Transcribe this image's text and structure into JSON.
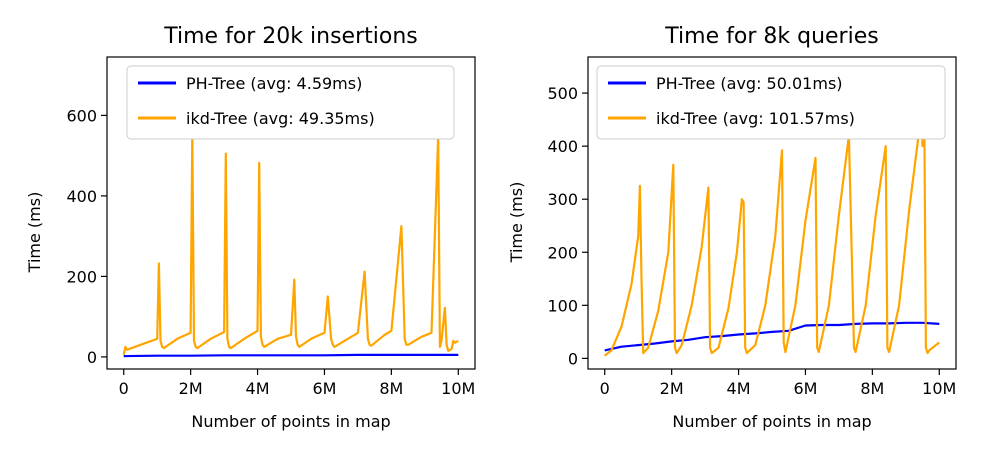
{
  "chart_data": [
    {
      "type": "line",
      "title": "Time for 20k insertions",
      "xlabel": "Number of points in map",
      "ylabel": "Time (ms)",
      "xlim": [
        -0.5,
        10.5
      ],
      "ylim": [
        -30,
        745
      ],
      "xticks": [
        0,
        2,
        4,
        6,
        8,
        10
      ],
      "xtick_labels": [
        "0",
        "2M",
        "4M",
        "6M",
        "8M",
        "10M"
      ],
      "yticks": [
        0,
        200,
        400,
        600
      ],
      "ytick_labels": [
        "0",
        "200",
        "400",
        "600"
      ],
      "legend_position": "top-right",
      "series": [
        {
          "name": "PH-Tree (avg: 4.59ms)",
          "color": "#0000ff",
          "x": [
            0,
            1,
            2,
            3,
            4,
            5,
            6,
            7,
            8,
            9,
            10
          ],
          "y": [
            2,
            3,
            3,
            4,
            4,
            4,
            4,
            5,
            5,
            5,
            5
          ]
        },
        {
          "name": "ikd-Tree (avg: 49.35ms)",
          "color": "#ffa500",
          "x": [
            0,
            0.05,
            0.1,
            0.5,
            1.0,
            1.05,
            1.1,
            1.15,
            1.2,
            1.6,
            2.0,
            2.05,
            2.1,
            2.15,
            2.2,
            2.6,
            3.0,
            3.05,
            3.1,
            3.15,
            3.2,
            3.6,
            4.0,
            4.05,
            4.1,
            4.15,
            4.2,
            4.6,
            5.0,
            5.1,
            5.15,
            5.2,
            5.25,
            5.6,
            6.0,
            6.1,
            6.2,
            6.25,
            6.3,
            6.7,
            7.0,
            7.2,
            7.3,
            7.35,
            7.4,
            7.8,
            8.0,
            8.3,
            8.4,
            8.45,
            8.5,
            8.9,
            9.2,
            9.4,
            9.45,
            9.5,
            9.6,
            9.65,
            9.7,
            9.8,
            9.85,
            9.9,
            10.0
          ],
          "y": [
            5,
            25,
            18,
            30,
            45,
            232,
            40,
            25,
            22,
            45,
            60,
            548,
            40,
            25,
            22,
            45,
            62,
            505,
            45,
            25,
            22,
            45,
            65,
            482,
            50,
            30,
            25,
            45,
            55,
            192,
            50,
            30,
            25,
            45,
            60,
            150,
            45,
            30,
            25,
            45,
            60,
            212,
            45,
            30,
            28,
            55,
            65,
            325,
            45,
            30,
            30,
            50,
            60,
            548,
            25,
            40,
            122,
            30,
            15,
            20,
            40,
            35,
            40
          ]
        }
      ]
    },
    {
      "type": "line",
      "title": "Time for 8k queries",
      "xlabel": "Number of points in map",
      "ylabel": "Time (ms)",
      "xlim": [
        -0.5,
        10.5
      ],
      "ylim": [
        -20,
        568
      ],
      "xticks": [
        0,
        2,
        4,
        6,
        8,
        10
      ],
      "xtick_labels": [
        "0",
        "2M",
        "4M",
        "6M",
        "8M",
        "10M"
      ],
      "yticks": [
        0,
        100,
        200,
        300,
        400,
        500
      ],
      "ytick_labels": [
        "0",
        "100",
        "200",
        "300",
        "400",
        "500"
      ],
      "legend_position": "top-right",
      "series": [
        {
          "name": "PH-Tree (avg: 50.01ms)",
          "color": "#0000ff",
          "x": [
            0,
            0.5,
            1,
            1.5,
            2,
            2.5,
            3,
            3.5,
            4,
            4.5,
            5,
            5.5,
            6,
            6.5,
            7,
            7.5,
            8,
            8.5,
            9,
            9.5,
            10
          ],
          "y": [
            15,
            22,
            25,
            28,
            32,
            35,
            40,
            42,
            45,
            47,
            50,
            52,
            62,
            63,
            63,
            65,
            66,
            66,
            67,
            67,
            65
          ]
        },
        {
          "name": "ikd-Tree (avg: 101.57ms)",
          "color": "#ffa500",
          "x": [
            0,
            0.2,
            0.5,
            0.8,
            1.0,
            1.05,
            1.1,
            1.15,
            1.3,
            1.6,
            1.9,
            2.05,
            2.1,
            2.15,
            2.3,
            2.6,
            2.9,
            3.1,
            3.15,
            3.2,
            3.4,
            3.7,
            3.95,
            4.1,
            4.15,
            4.2,
            4.25,
            4.5,
            4.8,
            5.1,
            5.3,
            5.35,
            5.4,
            5.7,
            6.0,
            6.3,
            6.35,
            6.4,
            6.7,
            7.0,
            7.3,
            7.45,
            7.5,
            7.8,
            8.1,
            8.4,
            8.45,
            8.5,
            8.8,
            9.1,
            9.4,
            9.45,
            9.5,
            9.55,
            9.6,
            9.65,
            9.7,
            9.9,
            10.0
          ],
          "y": [
            5,
            15,
            60,
            140,
            230,
            325,
            150,
            10,
            20,
            90,
            200,
            365,
            20,
            10,
            25,
            100,
            210,
            322,
            20,
            10,
            20,
            95,
            200,
            300,
            295,
            20,
            10,
            25,
            100,
            230,
            392,
            30,
            12,
            100,
            260,
            378,
            20,
            12,
            100,
            270,
            420,
            20,
            12,
            100,
            270,
            400,
            20,
            12,
            100,
            280,
            430,
            550,
            400,
            480,
            20,
            10,
            15,
            25,
            30
          ]
        }
      ]
    }
  ]
}
